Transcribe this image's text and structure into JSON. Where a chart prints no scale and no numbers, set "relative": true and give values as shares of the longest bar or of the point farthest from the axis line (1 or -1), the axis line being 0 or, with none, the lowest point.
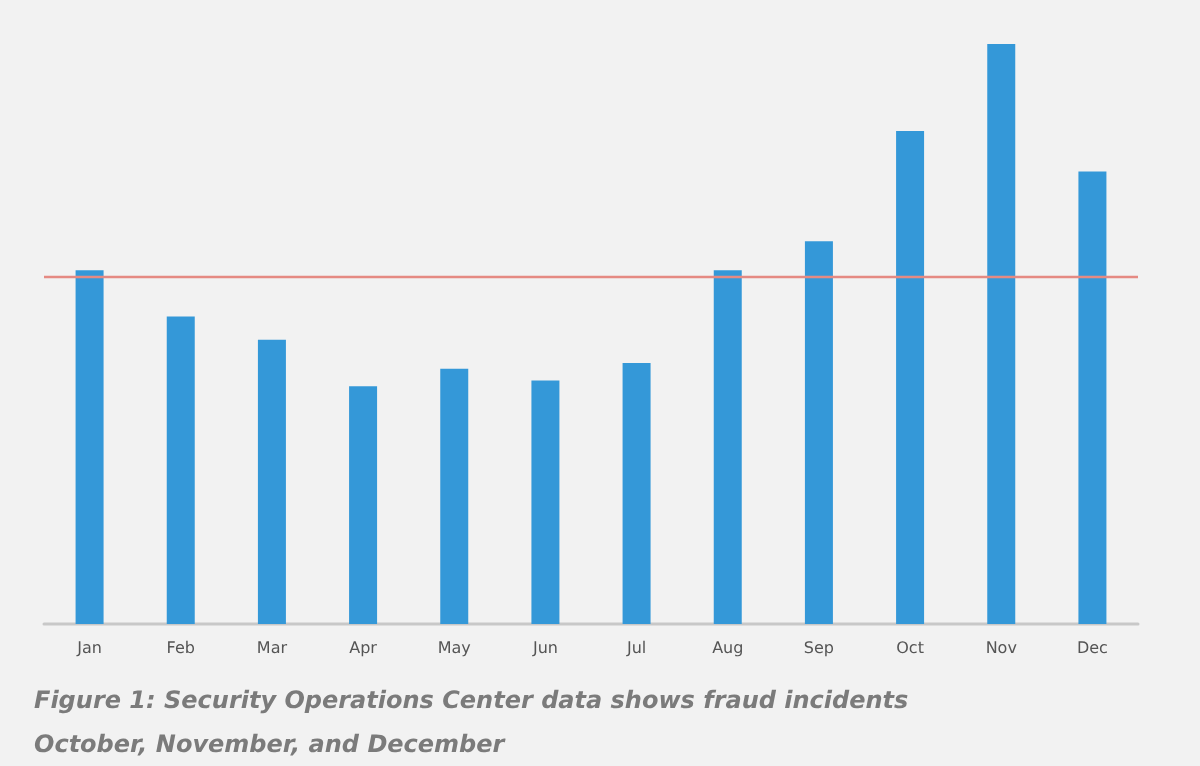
{
  "chart_data": {
    "type": "bar",
    "relative": true,
    "categories": [
      "Jan",
      "Feb",
      "Mar",
      "Apr",
      "May",
      "Jun",
      "Jul",
      "Aug",
      "Sep",
      "Oct",
      "Nov",
      "Dec"
    ],
    "values": [
      0.61,
      0.53,
      0.49,
      0.41,
      0.44,
      0.42,
      0.45,
      0.61,
      0.66,
      0.85,
      1,
      0.78
    ],
    "color": "#3498d8",
    "ref_lines": [
      {
        "axis": "y",
        "value": 0.6,
        "color": "#e58a83"
      }
    ],
    "annotations": [
      "Figure 1: Security Operations Center data shows fraud incidents",
      "October, November, and December"
    ]
  }
}
